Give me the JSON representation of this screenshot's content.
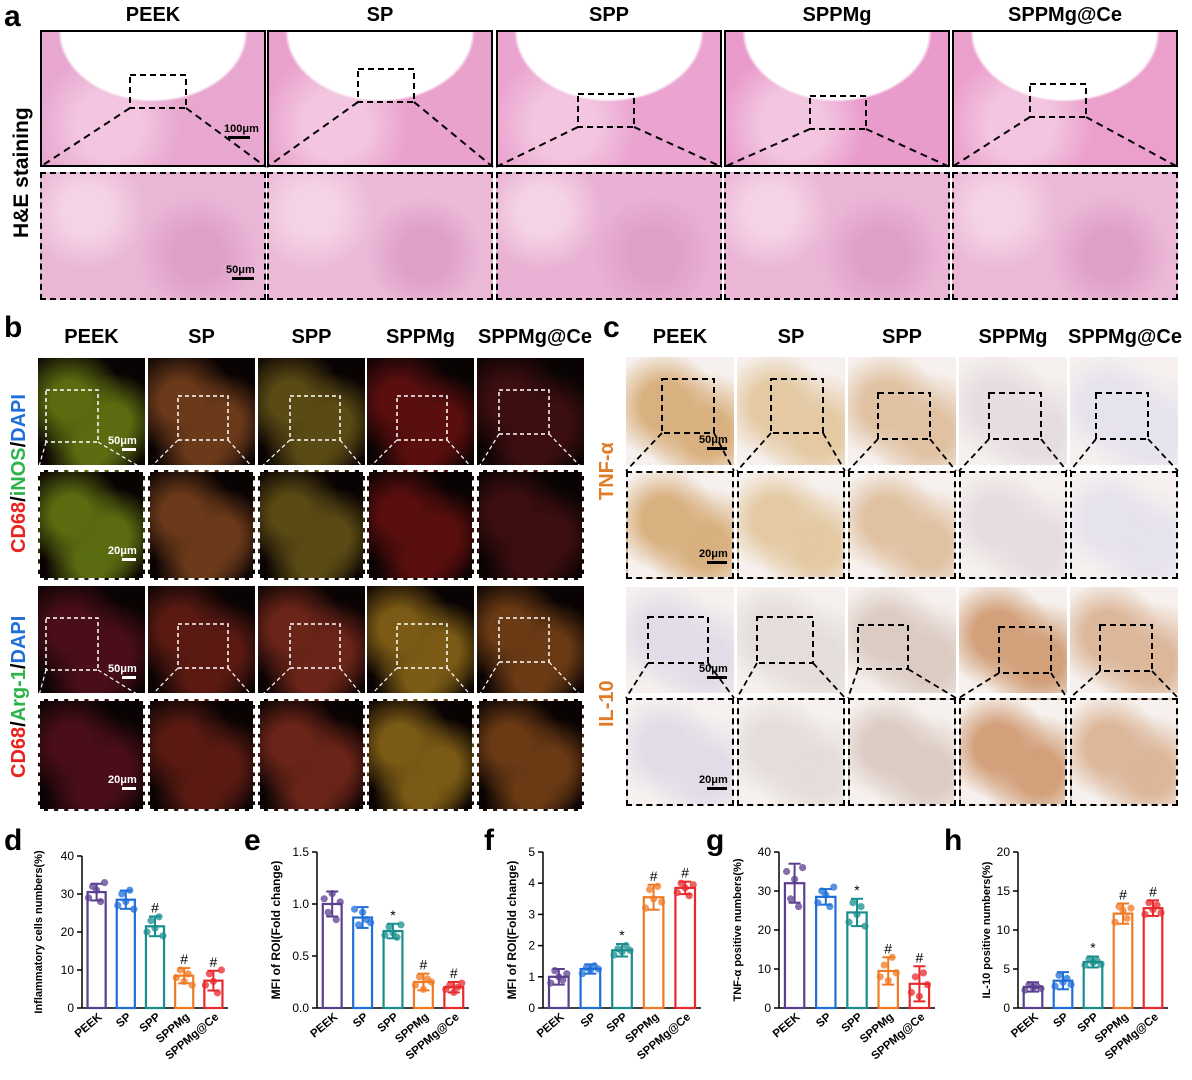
{
  "panels": {
    "a": "a",
    "b": "b",
    "c": "c",
    "d": "d",
    "e": "e",
    "f": "f",
    "g": "g",
    "h": "h"
  },
  "groups": [
    "PEEK",
    "SP",
    "SPP",
    "SPPMg",
    "SPPMg@Ce"
  ],
  "panel_a": {
    "row_label": "H&E staining",
    "scale_top": "100μm",
    "scale_bottom": "50μm"
  },
  "panel_b": {
    "label_inos": {
      "cd68": "CD68",
      "sep1": "/",
      "marker": "iNOS",
      "sep2": "/",
      "dapi": "DAPI"
    },
    "label_arg": {
      "cd68": "CD68",
      "sep1": "/",
      "marker": "Arg-1",
      "sep2": "/",
      "dapi": "DAPI"
    },
    "scale_overview": "50μm",
    "scale_zoom": "20μm"
  },
  "panel_c": {
    "label_tnf": "TNF-α",
    "label_il10": "IL-10",
    "scale_overview": "50μm",
    "scale_zoom": "20μm"
  },
  "colors": {
    "PEEK": "#5b3f8e",
    "SP": "#1f6fd8",
    "SPP": "#1a8d8d",
    "SPPMg": "#f07a24",
    "SPPMg@Ce": "#e8292d",
    "he_pink": "#e9a9cf",
    "cd68": "#e8221c",
    "marker_green": "#2db34a",
    "dapi_blue": "#1f6fd8",
    "ihc_orange": "#e07b28"
  },
  "chart_data": [
    {
      "id": "d",
      "type": "bar",
      "ylabel": "Inflammatory cells numbers(%)",
      "ylim": [
        0,
        40
      ],
      "yticks": [
        0,
        10,
        20,
        30,
        40
      ],
      "categories": [
        "PEEK",
        "SP",
        "SPP",
        "SPPMg",
        "SPPMg@Ce"
      ],
      "values": [
        30.5,
        28.5,
        21.5,
        8.5,
        7.2
      ],
      "errors": [
        2.2,
        2.4,
        2.6,
        2.0,
        2.6
      ],
      "annotations": [
        "",
        "",
        "#",
        "#",
        "#"
      ],
      "points": [
        [
          29,
          32,
          31,
          28,
          33
        ],
        [
          27,
          30,
          28,
          31,
          26
        ],
        [
          20,
          23,
          21,
          24,
          19
        ],
        [
          8,
          10,
          7,
          9,
          6
        ],
        [
          6,
          9,
          7,
          4,
          10
        ]
      ]
    },
    {
      "id": "e",
      "type": "bar",
      "ylabel": "MFI of ROI(Fold change)",
      "ylim": [
        0,
        1.5
      ],
      "yticks": [
        0.0,
        0.5,
        1.0,
        1.5
      ],
      "categories": [
        "PEEK",
        "SP",
        "SPP",
        "SPPMg",
        "SPPMg@Ce"
      ],
      "values": [
        1.0,
        0.87,
        0.74,
        0.25,
        0.2
      ],
      "errors": [
        0.12,
        0.1,
        0.07,
        0.08,
        0.05
      ],
      "annotations": [
        "",
        "",
        "*",
        "#",
        "#"
      ],
      "points": [
        [
          1.05,
          0.92,
          1.1,
          0.85,
          1.02
        ],
        [
          0.95,
          0.8,
          0.92,
          0.85,
          0.82
        ],
        [
          0.7,
          0.78,
          0.72,
          0.68,
          0.8
        ],
        [
          0.22,
          0.3,
          0.18,
          0.28,
          0.25
        ],
        [
          0.18,
          0.22,
          0.15,
          0.2,
          0.24
        ]
      ]
    },
    {
      "id": "f",
      "type": "bar",
      "ylabel": "MFI of ROI(Fold change)",
      "ylim": [
        0,
        5
      ],
      "yticks": [
        0,
        1,
        2,
        3,
        4,
        5
      ],
      "categories": [
        "PEEK",
        "SP",
        "SPP",
        "SPPMg",
        "SPPMg@Ce"
      ],
      "values": [
        1.0,
        1.25,
        1.85,
        3.55,
        3.85
      ],
      "errors": [
        0.25,
        0.15,
        0.2,
        0.4,
        0.2
      ],
      "annotations": [
        "",
        "",
        "*",
        "#",
        "#"
      ],
      "points": [
        [
          0.8,
          1.2,
          1.0,
          0.9,
          1.1
        ],
        [
          1.1,
          1.3,
          1.2,
          1.35,
          1.25
        ],
        [
          1.7,
          1.9,
          1.8,
          2.0,
          1.85
        ],
        [
          3.2,
          3.8,
          3.5,
          3.9,
          3.4
        ],
        [
          3.7,
          4.0,
          3.85,
          3.6,
          3.95
        ]
      ]
    },
    {
      "id": "g",
      "type": "bar",
      "ylabel": "TNF-α positive numbers(%)",
      "ylim": [
        0,
        40
      ],
      "yticks": [
        0,
        10,
        20,
        30,
        40
      ],
      "categories": [
        "PEEK",
        "SP",
        "SPP",
        "SPPMg",
        "SPPMg@Ce"
      ],
      "values": [
        32,
        28.5,
        24.5,
        9.5,
        6.2
      ],
      "errors": [
        5.0,
        2.0,
        3.5,
        3.5,
        4.5
      ],
      "annotations": [
        "",
        "",
        "*",
        "#",
        "#"
      ],
      "points": [
        [
          35,
          28,
          33,
          26,
          36
        ],
        [
          27,
          30,
          29,
          26,
          31
        ],
        [
          22,
          27,
          24,
          26,
          21
        ],
        [
          8,
          11,
          7,
          13,
          9
        ],
        [
          4,
          8,
          3,
          9,
          6
        ]
      ]
    },
    {
      "id": "h",
      "type": "bar",
      "ylabel": "IL-10 positive numbers(%)",
      "ylim": [
        0,
        20
      ],
      "yticks": [
        0,
        5,
        10,
        15,
        20
      ],
      "categories": [
        "PEEK",
        "SP",
        "SPP",
        "SPPMg",
        "SPPMg@Ce"
      ],
      "values": [
        2.7,
        3.5,
        5.9,
        12.1,
        12.8
      ],
      "errors": [
        0.6,
        1.1,
        0.7,
        1.3,
        1.0
      ],
      "annotations": [
        "",
        "",
        "*",
        "#",
        "#"
      ],
      "points": [
        [
          2.3,
          3.0,
          2.6,
          2.8,
          2.5
        ],
        [
          2.8,
          4.2,
          3.3,
          3.8,
          3.0
        ],
        [
          5.5,
          6.3,
          5.8,
          6.1,
          5.6
        ],
        [
          11.0,
          13.0,
          12.5,
          11.5,
          12.8
        ],
        [
          12.0,
          13.5,
          12.6,
          13.2,
          12.2
        ]
      ]
    }
  ]
}
